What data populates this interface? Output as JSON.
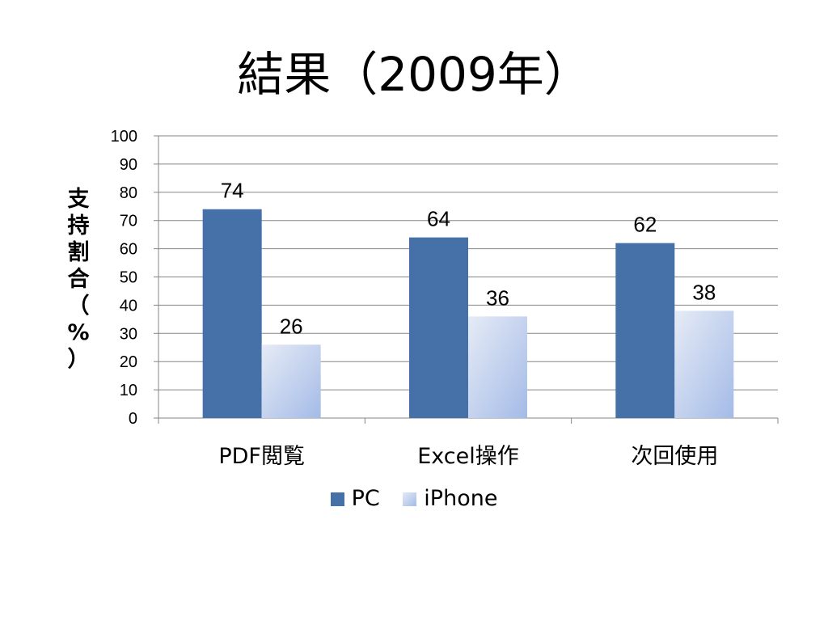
{
  "title": "結果（2009年）",
  "chart_data": {
    "type": "bar",
    "categories": [
      "PDF閲覧",
      "Excel操作",
      "次回使用"
    ],
    "series": [
      {
        "name": "PC",
        "values": [
          74,
          64,
          62
        ],
        "color": "#4571a8"
      },
      {
        "name": "iPhone",
        "values": [
          26,
          36,
          38
        ],
        "color": "#a4bbe7"
      }
    ],
    "ylabel": "支持割合（%）",
    "xlabel": "",
    "ylim": [
      0,
      100
    ],
    "yticks": [
      0,
      10,
      20,
      30,
      40,
      50,
      60,
      70,
      80,
      90,
      100
    ],
    "data_labels": true,
    "grid": true,
    "legend_position": "bottom"
  }
}
